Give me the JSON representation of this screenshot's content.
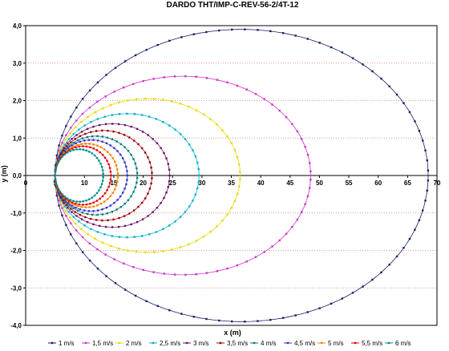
{
  "chart_data": {
    "type": "scatter",
    "title": "DARDO THT/IMP-C-REV-56-2/4T-12",
    "xlabel": "x (m)",
    "ylabel": "y (m)",
    "xlim": [
      0,
      70
    ],
    "ylim": [
      -4.0,
      4.0
    ],
    "x_ticks": [
      "0",
      "5",
      "10",
      "15",
      "20",
      "25",
      "30",
      "35",
      "40",
      "45",
      "50",
      "55",
      "60",
      "65",
      "70"
    ],
    "y_ticks": [
      "-4,0",
      "-3,0",
      "-2,0",
      "-1,0",
      "0,0",
      "1,0",
      "2,0",
      "3,0",
      "4,0"
    ],
    "grid": "horizontal dotted",
    "legend_position": "bottom",
    "series": [
      {
        "name": "1 m/s",
        "color": "#1a1a66",
        "x_start": 5,
        "y_start": 0.65,
        "x_max": 68.5,
        "y_max": 3.9
      },
      {
        "name": "1,5 m/s",
        "color": "#cc33cc",
        "x_start": 5,
        "y_start": 0.6,
        "x_max": 48.5,
        "y_max": 2.65
      },
      {
        "name": "2 m/s",
        "color": "#e6d800",
        "x_start": 5,
        "y_start": 0.55,
        "x_max": 36.5,
        "y_max": 2.05
      },
      {
        "name": "2,5 m/s",
        "color": "#00b0c8",
        "x_start": 5,
        "y_start": 0.5,
        "x_max": 29.5,
        "y_max": 1.65
      },
      {
        "name": "3 m/s",
        "color": "#6a0f6a",
        "x_start": 5,
        "y_start": 0.5,
        "x_max": 24.5,
        "y_max": 1.38
      },
      {
        "name": "3,5 m/s",
        "color": "#990000",
        "x_start": 5,
        "y_start": 0.45,
        "x_max": 21.5,
        "y_max": 1.2
      },
      {
        "name": "4 m/s",
        "color": "#007a7a",
        "x_start": 5,
        "y_start": 0.45,
        "x_max": 19.0,
        "y_max": 1.05
      },
      {
        "name": "4,5 m/s",
        "color": "#3333cc",
        "x_start": 5,
        "y_start": 0.4,
        "x_max": 17.3,
        "y_max": 0.95
      },
      {
        "name": "5 m/s",
        "color": "#ff8000",
        "x_start": 5,
        "y_start": 0.4,
        "x_max": 15.7,
        "y_max": 0.85
      },
      {
        "name": "5,5 m/s",
        "color": "#e00000",
        "x_start": 5,
        "y_start": 0.4,
        "x_max": 14.5,
        "y_max": 0.78
      },
      {
        "name": "6 m/s",
        "color": "#008b8b",
        "x_start": 5,
        "y_start": 0.35,
        "x_max": 13.2,
        "y_max": 0.7
      }
    ]
  }
}
